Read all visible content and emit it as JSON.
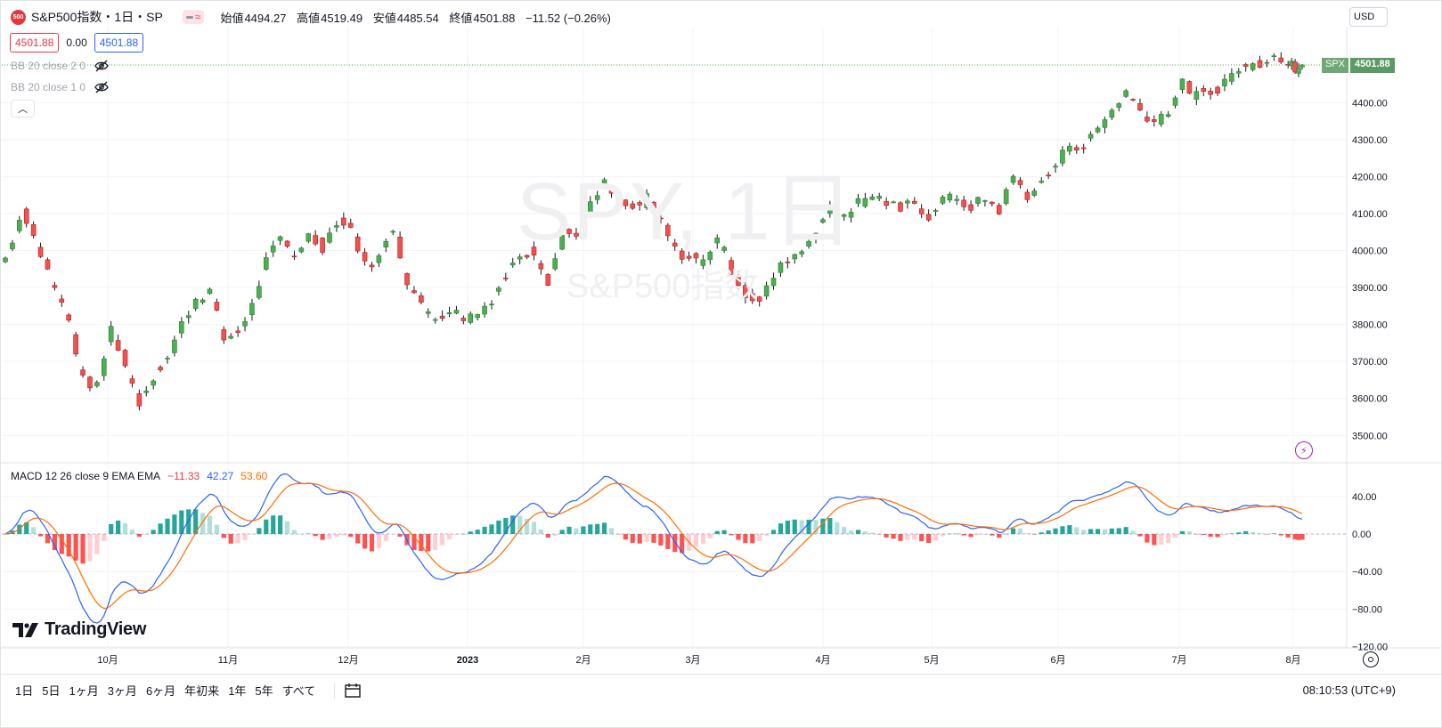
{
  "header": {
    "badge": "500",
    "title": "S&P500指数・1日・SP",
    "open_label": "始値",
    "open": "4494.27",
    "high_label": "高値",
    "high": "4519.49",
    "low_label": "安値",
    "low": "4485.54",
    "close_label": "終値",
    "close": "4501.88",
    "change": "−11.52 (−0.26%)"
  },
  "quote": {
    "bid": "4501.88",
    "spread": "0.00",
    "ask": "4501.88"
  },
  "indicators": [
    {
      "label": "BB 20 close 2 0"
    },
    {
      "label": "BB 20 close 1 0"
    }
  ],
  "macd_legend": {
    "name": "MACD 12 26 close 9 EMA EMA",
    "hist": "−11.33",
    "macd": "42.27",
    "signal": "53.60"
  },
  "watermark": {
    "symbol": "SPY, 1日",
    "name": "S&P500指数"
  },
  "logo": {
    "text": "TradingView"
  },
  "currency": "USD",
  "last_price_tag": {
    "symbol": "SPX",
    "price": "4501.88"
  },
  "chart_data": {
    "type": "candlestick",
    "price_axis": {
      "ticks": [
        "4400.00",
        "4300.00",
        "4200.00",
        "4100.00",
        "4000.00",
        "3900.00",
        "3800.00",
        "3700.00",
        "3600.00",
        "3500.00"
      ]
    },
    "macd_axis": {
      "ticks": [
        "40.00",
        "0.00",
        "−40.00",
        "−80.00",
        "−120.00"
      ]
    },
    "time_axis": {
      "ticks": [
        "10月",
        "11月",
        "12月",
        "2023",
        "2月",
        "3月",
        "4月",
        "5月",
        "6月",
        "7月",
        "8月"
      ]
    },
    "colors": {
      "up": "#26a69a",
      "down": "#ef5350",
      "candle_up": "#4caf50",
      "macd": "#2962ff",
      "signal": "#ff6d00"
    },
    "price_anchors": [
      [
        0,
        3980
      ],
      [
        5,
        4110
      ],
      [
        10,
        3990
      ],
      [
        14,
        3900
      ],
      [
        18,
        3810
      ],
      [
        22,
        3650
      ],
      [
        26,
        3630
      ],
      [
        30,
        3790
      ],
      [
        34,
        3690
      ],
      [
        38,
        3590
      ],
      [
        42,
        3660
      ],
      [
        46,
        3710
      ],
      [
        50,
        3800
      ],
      [
        54,
        3870
      ],
      [
        58,
        3890
      ],
      [
        62,
        3760
      ],
      [
        66,
        3780
      ],
      [
        70,
        3850
      ],
      [
        74,
        3970
      ],
      [
        78,
        4030
      ],
      [
        82,
        3990
      ],
      [
        86,
        4040
      ],
      [
        90,
        4010
      ],
      [
        94,
        4080
      ],
      [
        98,
        4060
      ],
      [
        102,
        3960
      ],
      [
        106,
        3980
      ],
      [
        110,
        4060
      ],
      [
        114,
        3920
      ],
      [
        118,
        3850
      ],
      [
        122,
        3820
      ],
      [
        126,
        3840
      ],
      [
        130,
        3820
      ],
      [
        134,
        3830
      ],
      [
        138,
        3870
      ],
      [
        142,
        3930
      ],
      [
        146,
        3990
      ],
      [
        150,
        4000
      ],
      [
        154,
        3920
      ],
      [
        158,
        4040
      ],
      [
        162,
        4050
      ],
      [
        166,
        4120
      ],
      [
        170,
        4180
      ],
      [
        174,
        4130
      ],
      [
        178,
        4110
      ],
      [
        182,
        4140
      ],
      [
        186,
        4080
      ],
      [
        190,
        4000
      ],
      [
        194,
        3980
      ],
      [
        198,
        3970
      ],
      [
        202,
        4040
      ],
      [
        206,
        3950
      ],
      [
        210,
        3880
      ],
      [
        214,
        3860
      ],
      [
        218,
        3930
      ],
      [
        222,
        3980
      ],
      [
        226,
        4000
      ],
      [
        230,
        4060
      ],
      [
        234,
        4110
      ],
      [
        238,
        4100
      ],
      [
        242,
        4130
      ],
      [
        246,
        4150
      ],
      [
        250,
        4130
      ],
      [
        254,
        4110
      ],
      [
        258,
        4140
      ],
      [
        262,
        4080
      ],
      [
        266,
        4150
      ],
      [
        270,
        4130
      ],
      [
        274,
        4120
      ],
      [
        278,
        4140
      ],
      [
        282,
        4110
      ],
      [
        286,
        4200
      ],
      [
        290,
        4150
      ],
      [
        294,
        4180
      ],
      [
        298,
        4230
      ],
      [
        302,
        4290
      ],
      [
        306,
        4280
      ],
      [
        310,
        4330
      ],
      [
        314,
        4380
      ],
      [
        318,
        4430
      ],
      [
        322,
        4380
      ],
      [
        326,
        4350
      ],
      [
        330,
        4380
      ],
      [
        334,
        4450
      ],
      [
        338,
        4420
      ],
      [
        342,
        4420
      ],
      [
        346,
        4460
      ],
      [
        350,
        4490
      ],
      [
        354,
        4500
      ],
      [
        358,
        4520
      ],
      [
        360,
        4540
      ],
      [
        362,
        4510
      ],
      [
        366,
        4495
      ],
      [
        368,
        4500
      ]
    ],
    "last_close": 4501.88
  }
}
